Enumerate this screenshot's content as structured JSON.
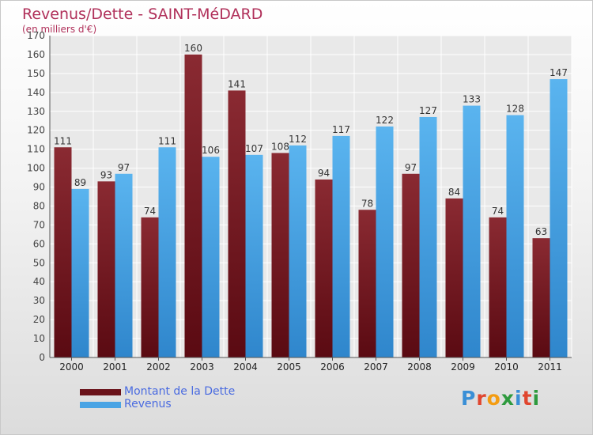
{
  "header": {
    "title": "Revenus/Dette - SAINT-MéDARD",
    "subtitle": "(en milliers d'€)"
  },
  "chart_data": {
    "type": "bar",
    "title": "Revenus/Dette - SAINT-MéDARD",
    "subtitle": "(en milliers d'€)",
    "xlabel": "",
    "ylabel": "",
    "ylim": [
      0,
      170
    ],
    "yticks": [
      0,
      10,
      20,
      30,
      40,
      50,
      60,
      70,
      80,
      90,
      100,
      110,
      120,
      130,
      140,
      150,
      160,
      170
    ],
    "grid": true,
    "legend_position": "bottom-left",
    "categories": [
      "2000",
      "2001",
      "2002",
      "2003",
      "2004",
      "2005",
      "2006",
      "2007",
      "2008",
      "2009",
      "2010",
      "2011"
    ],
    "series": [
      {
        "name": "Montant de la Dette",
        "color": "#7a1f28",
        "values": [
          111,
          93,
          74,
          160,
          141,
          108,
          94,
          78,
          97,
          84,
          74,
          63
        ]
      },
      {
        "name": "Revenus",
        "color": "#4aa4e4",
        "values": [
          89,
          97,
          111,
          106,
          107,
          112,
          117,
          122,
          127,
          133,
          128,
          147
        ]
      }
    ]
  },
  "logo": {
    "text": "Proxiti",
    "colors": [
      "#3a8fd6",
      "#e0462f",
      "#f39c12",
      "#2e9a3e",
      "#3a8fd6",
      "#e0462f",
      "#2e9a3e"
    ]
  }
}
